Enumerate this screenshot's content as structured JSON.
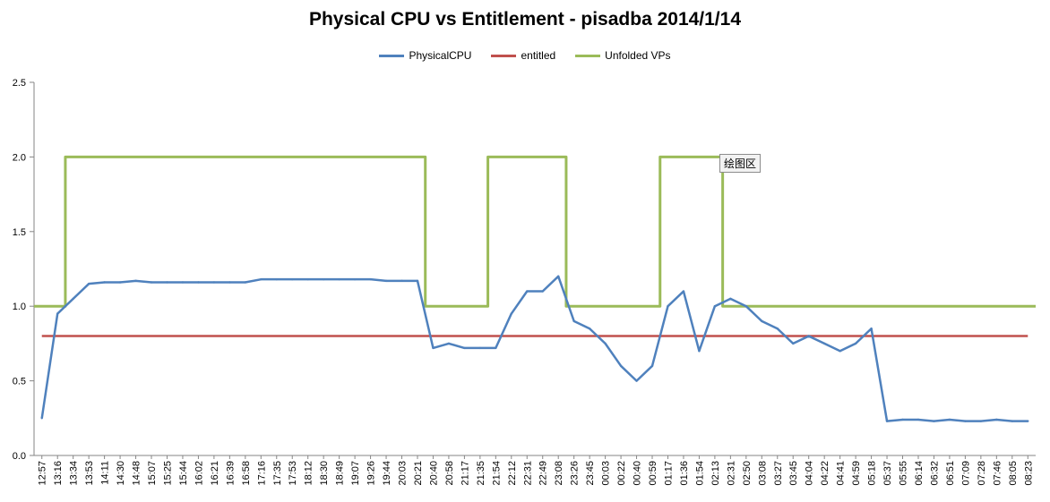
{
  "chart_data": {
    "type": "line",
    "title": "Physical CPU vs Entitlement - pisadba  2014/1/14",
    "xlabel": "",
    "ylabel": "",
    "ylim": [
      0,
      2.5
    ],
    "yticks": [
      "0.0",
      "0.5",
      "1.0",
      "1.5",
      "2.0",
      "2.5"
    ],
    "grid": false,
    "legend_position": "top-center",
    "categories": [
      "12:57",
      "13:16",
      "13:34",
      "13:53",
      "14:11",
      "14:30",
      "14:48",
      "15:07",
      "15:25",
      "15:44",
      "16:02",
      "16:21",
      "16:39",
      "16:58",
      "17:16",
      "17:35",
      "17:53",
      "18:12",
      "18:30",
      "18:49",
      "19:07",
      "19:26",
      "19:44",
      "20:03",
      "20:21",
      "20:40",
      "20:58",
      "21:17",
      "21:35",
      "21:54",
      "22:12",
      "22:31",
      "22:49",
      "23:08",
      "23:26",
      "23:45",
      "00:03",
      "00:22",
      "00:40",
      "00:59",
      "01:17",
      "01:36",
      "01:54",
      "02:13",
      "02:31",
      "02:50",
      "03:08",
      "03:27",
      "03:45",
      "04:04",
      "04:22",
      "04:41",
      "04:59",
      "05:18",
      "05:37",
      "05:55",
      "06:14",
      "06:32",
      "06:51",
      "07:09",
      "07:28",
      "07:46",
      "08:05",
      "08:23"
    ],
    "series": [
      {
        "name": "PhysicalCPU",
        "color": "#4f81bd",
        "values": [
          0.25,
          0.95,
          1.05,
          1.15,
          1.16,
          1.16,
          1.17,
          1.16,
          1.16,
          1.16,
          1.16,
          1.16,
          1.16,
          1.16,
          1.18,
          1.18,
          1.18,
          1.18,
          1.18,
          1.18,
          1.18,
          1.18,
          1.17,
          1.17,
          1.17,
          0.72,
          0.75,
          0.72,
          0.72,
          0.72,
          0.95,
          1.1,
          1.1,
          1.2,
          0.9,
          0.85,
          0.75,
          0.6,
          0.5,
          0.6,
          1.0,
          1.1,
          0.7,
          1.0,
          1.05,
          1.0,
          0.9,
          0.85,
          0.75,
          0.8,
          0.75,
          0.7,
          0.75,
          0.85,
          0.23,
          0.24,
          0.24,
          0.23,
          0.24,
          0.23,
          0.23,
          0.24,
          0.23,
          0.23
        ]
      },
      {
        "name": "entitled",
        "color": "#c0504d",
        "values": [
          0.8,
          0.8,
          0.8,
          0.8,
          0.8,
          0.8,
          0.8,
          0.8,
          0.8,
          0.8,
          0.8,
          0.8,
          0.8,
          0.8,
          0.8,
          0.8,
          0.8,
          0.8,
          0.8,
          0.8,
          0.8,
          0.8,
          0.8,
          0.8,
          0.8,
          0.8,
          0.8,
          0.8,
          0.8,
          0.8,
          0.8,
          0.8,
          0.8,
          0.8,
          0.8,
          0.8,
          0.8,
          0.8,
          0.8,
          0.8,
          0.8,
          0.8,
          0.8,
          0.8,
          0.8,
          0.8,
          0.8,
          0.8,
          0.8,
          0.8,
          0.8,
          0.8,
          0.8,
          0.8,
          0.8,
          0.8,
          0.8,
          0.8,
          0.8,
          0.8,
          0.8,
          0.8,
          0.8,
          0.8
        ]
      },
      {
        "name": "Unfolded VPs",
        "color": "#9bbb59",
        "values": [
          1,
          1,
          2,
          2,
          2,
          2,
          2,
          2,
          2,
          2,
          2,
          2,
          2,
          2,
          2,
          2,
          2,
          2,
          2,
          2,
          2,
          2,
          2,
          2,
          2,
          1,
          1,
          1,
          1,
          2,
          2,
          2,
          2,
          2,
          1,
          1,
          1,
          1,
          1,
          1,
          2,
          2,
          2,
          2,
          1,
          1,
          1,
          1,
          1,
          1,
          1,
          1,
          1,
          1,
          1,
          1,
          1,
          1,
          1,
          1,
          1,
          1,
          1,
          1
        ]
      }
    ]
  },
  "tooltip": {
    "label": "绘图区"
  }
}
